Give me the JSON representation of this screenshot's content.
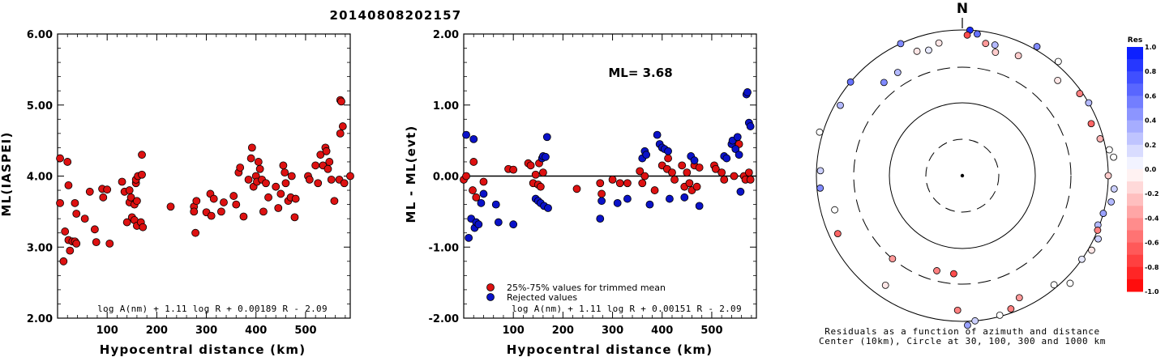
{
  "title": "20140808202157",
  "colors": {
    "accepted": "#dd1111",
    "rejected": "#0a12c8"
  },
  "chart_data": [
    {
      "id": "ml-vs-distance",
      "type": "scatter",
      "xlabel": "Hypocentral distance (km)",
      "ylabel": "ML(IASPEI)",
      "xlim": [
        0,
        590
      ],
      "ylim": [
        2.0,
        6.0
      ],
      "xticks": [
        "100",
        "200",
        "300",
        "400",
        "500"
      ],
      "yticks": [
        "2.00",
        "3.00",
        "4.00",
        "5.00",
        "6.00"
      ],
      "formula": "log A(nm) + 1.11 log R + 0.00189 R - 2.09",
      "points": [
        [
          5,
          4.25
        ],
        [
          5,
          3.62
        ],
        [
          12,
          2.8
        ],
        [
          15,
          3.22
        ],
        [
          20,
          4.2
        ],
        [
          22,
          3.87
        ],
        [
          22,
          3.1
        ],
        [
          25,
          2.95
        ],
        [
          30,
          3.08
        ],
        [
          35,
          3.62
        ],
        [
          35,
          3.08
        ],
        [
          38,
          3.05
        ],
        [
          38,
          3.47
        ],
        [
          55,
          3.4
        ],
        [
          65,
          3.78
        ],
        [
          75,
          3.25
        ],
        [
          78,
          3.07
        ],
        [
          90,
          3.82
        ],
        [
          92,
          3.7
        ],
        [
          100,
          3.81
        ],
        [
          105,
          3.05
        ],
        [
          130,
          3.92
        ],
        [
          135,
          3.78
        ],
        [
          140,
          3.35
        ],
        [
          145,
          3.8
        ],
        [
          145,
          3.63
        ],
        [
          148,
          3.7
        ],
        [
          150,
          3.42
        ],
        [
          155,
          3.6
        ],
        [
          155,
          3.38
        ],
        [
          158,
          3.9
        ],
        [
          158,
          3.95
        ],
        [
          160,
          3.3
        ],
        [
          160,
          3.65
        ],
        [
          162,
          4.0
        ],
        [
          168,
          3.35
        ],
        [
          170,
          4.3
        ],
        [
          170,
          4.02
        ],
        [
          172,
          3.28
        ],
        [
          228,
          3.57
        ],
        [
          275,
          3.57
        ],
        [
          275,
          3.5
        ],
        [
          278,
          3.2
        ],
        [
          280,
          3.65
        ],
        [
          300,
          3.49
        ],
        [
          308,
          3.75
        ],
        [
          310,
          3.44
        ],
        [
          315,
          3.68
        ],
        [
          330,
          3.5
        ],
        [
          335,
          3.63
        ],
        [
          355,
          3.72
        ],
        [
          360,
          3.6
        ],
        [
          365,
          4.05
        ],
        [
          368,
          4.12
        ],
        [
          375,
          3.43
        ],
        [
          385,
          3.95
        ],
        [
          390,
          4.25
        ],
        [
          392,
          4.4
        ],
        [
          395,
          3.85
        ],
        [
          400,
          4.0
        ],
        [
          402,
          3.92
        ],
        [
          405,
          4.2
        ],
        [
          408,
          4.1
        ],
        [
          412,
          3.95
        ],
        [
          415,
          3.5
        ],
        [
          420,
          3.9
        ],
        [
          425,
          3.7
        ],
        [
          440,
          3.85
        ],
        [
          445,
          3.55
        ],
        [
          450,
          3.75
        ],
        [
          455,
          4.15
        ],
        [
          458,
          4.05
        ],
        [
          460,
          3.9
        ],
        [
          465,
          3.65
        ],
        [
          470,
          3.7
        ],
        [
          472,
          4.0
        ],
        [
          478,
          3.42
        ],
        [
          480,
          3.68
        ],
        [
          505,
          4.0
        ],
        [
          508,
          3.95
        ],
        [
          520,
          4.15
        ],
        [
          525,
          3.9
        ],
        [
          530,
          4.3
        ],
        [
          535,
          4.15
        ],
        [
          540,
          4.4
        ],
        [
          542,
          4.35
        ],
        [
          545,
          4.1
        ],
        [
          548,
          4.2
        ],
        [
          552,
          3.95
        ],
        [
          558,
          3.65
        ],
        [
          568,
          3.95
        ],
        [
          570,
          4.6
        ],
        [
          570,
          5.07
        ],
        [
          572,
          5.05
        ],
        [
          575,
          4.7
        ],
        [
          578,
          3.9
        ],
        [
          590,
          4.0
        ]
      ]
    },
    {
      "id": "residual-vs-distance",
      "type": "scatter",
      "xlabel": "Hypocentral distance (km)",
      "ylabel": "ML - ML(evt)",
      "xlim": [
        0,
        590
      ],
      "ylim": [
        -2.0,
        2.0
      ],
      "xticks": [
        "100",
        "200",
        "300",
        "400",
        "500"
      ],
      "yticks": [
        "-2.00",
        "-1.00",
        "0.00",
        "1.00",
        "2.00"
      ],
      "annotation": "ML= 3.68",
      "legend": [
        "25%-75% values for trimmed mean",
        "Rejected values"
      ],
      "formula": "log A(nm) + 1.11 log R + 0.00151 R - 2.09",
      "series": [
        {
          "name": "25%-75% values for trimmed mean",
          "points": [
            [
              0,
              -0.05
            ],
            [
              5,
              0.0
            ],
            [
              18,
              -0.2
            ],
            [
              20,
              0.2
            ],
            [
              25,
              -0.3
            ],
            [
              40,
              -0.08
            ],
            [
              90,
              0.1
            ],
            [
              100,
              0.09
            ],
            [
              130,
              0.18
            ],
            [
              135,
              0.15
            ],
            [
              140,
              -0.1
            ],
            [
              145,
              0.02
            ],
            [
              150,
              -0.12
            ],
            [
              152,
              0.18
            ],
            [
              155,
              -0.15
            ],
            [
              160,
              0.05
            ],
            [
              228,
              -0.18
            ],
            [
              275,
              -0.1
            ],
            [
              278,
              -0.25
            ],
            [
              300,
              -0.05
            ],
            [
              315,
              -0.1
            ],
            [
              330,
              -0.1
            ],
            [
              355,
              0.07
            ],
            [
              360,
              -0.1
            ],
            [
              365,
              0.0
            ],
            [
              385,
              -0.2
            ],
            [
              400,
              0.15
            ],
            [
              410,
              0.1
            ],
            [
              412,
              0.25
            ],
            [
              420,
              0.05
            ],
            [
              425,
              -0.05
            ],
            [
              440,
              0.15
            ],
            [
              445,
              -0.15
            ],
            [
              450,
              0.05
            ],
            [
              455,
              -0.1
            ],
            [
              460,
              -0.2
            ],
            [
              465,
              0.15
            ],
            [
              470,
              -0.15
            ],
            [
              475,
              0.12
            ],
            [
              505,
              0.15
            ],
            [
              508,
              0.1
            ],
            [
              520,
              0.05
            ],
            [
              525,
              -0.05
            ],
            [
              545,
              0.0
            ],
            [
              555,
              0.45
            ],
            [
              565,
              0.0
            ],
            [
              568,
              -0.05
            ],
            [
              575,
              0.05
            ],
            [
              578,
              -0.05
            ]
          ]
        },
        {
          "name": "Rejected values",
          "points": [
            [
              5,
              0.58
            ],
            [
              10,
              -0.87
            ],
            [
              15,
              -0.6
            ],
            [
              20,
              0.52
            ],
            [
              22,
              -0.73
            ],
            [
              25,
              -0.65
            ],
            [
              30,
              -0.68
            ],
            [
              35,
              -0.38
            ],
            [
              40,
              -0.25
            ],
            [
              65,
              -0.4
            ],
            [
              70,
              -0.65
            ],
            [
              100,
              -0.68
            ],
            [
              145,
              -0.32
            ],
            [
              150,
              -0.35
            ],
            [
              155,
              -0.38
            ],
            [
              158,
              0.25
            ],
            [
              160,
              0.28
            ],
            [
              162,
              -0.42
            ],
            [
              165,
              0.27
            ],
            [
              168,
              0.55
            ],
            [
              170,
              -0.45
            ],
            [
              275,
              -0.6
            ],
            [
              278,
              -0.35
            ],
            [
              310,
              -0.38
            ],
            [
              330,
              -0.32
            ],
            [
              360,
              0.25
            ],
            [
              365,
              0.35
            ],
            [
              368,
              0.3
            ],
            [
              375,
              -0.4
            ],
            [
              390,
              0.58
            ],
            [
              395,
              0.45
            ],
            [
              400,
              0.4
            ],
            [
              405,
              0.38
            ],
            [
              412,
              0.35
            ],
            [
              415,
              -0.32
            ],
            [
              445,
              -0.3
            ],
            [
              458,
              0.28
            ],
            [
              465,
              0.22
            ],
            [
              475,
              -0.42
            ],
            [
              525,
              0.28
            ],
            [
              530,
              0.25
            ],
            [
              540,
              0.45
            ],
            [
              542,
              0.5
            ],
            [
              548,
              0.38
            ],
            [
              552,
              0.55
            ],
            [
              555,
              0.3
            ],
            [
              558,
              -0.22
            ],
            [
              570,
              1.15
            ],
            [
              572,
              1.18
            ],
            [
              575,
              0.75
            ],
            [
              578,
              0.7
            ]
          ]
        }
      ]
    },
    {
      "id": "azimuth-residuals",
      "type": "polar-scatter",
      "north_label": "N",
      "caption": [
        "Residuals as a function of azimuth and distance",
        "Center (10km), Circle at 30, 100, 300 and 1000 km"
      ],
      "colorbar": {
        "title": "Res",
        "ticks": [
          "1.0",
          "0.8",
          "0.6",
          "0.4",
          "0.2",
          "0.0",
          "-0.2",
          "-0.4",
          "-0.6",
          "-0.8",
          "-1.0"
        ]
      },
      "points_az_dist_res": [
        [
          3,
          1000,
          0.9
        ],
        [
          2,
          850,
          -0.7
        ],
        [
          6,
          900,
          0.6
        ],
        [
          14,
          700,
          0.3
        ],
        [
          10,
          690,
          -0.4
        ],
        [
          15,
          560,
          -0.2
        ],
        [
          25,
          650,
          -0.2
        ],
        [
          30,
          1050,
          0.5
        ],
        [
          45,
          700,
          -0.1
        ],
        [
          55,
          920,
          -0.5
        ],
        [
          60,
          1000,
          0.3
        ],
        [
          68,
          800,
          -0.6
        ],
        [
          75,
          900,
          -0.3
        ],
        [
          80,
          1050,
          0.0
        ],
        [
          83,
          1100,
          0.0
        ],
        [
          90,
          1000,
          -0.2
        ],
        [
          95,
          1100,
          0.2
        ],
        [
          100,
          1080,
          0.3
        ],
        [
          105,
          1000,
          0.4
        ],
        [
          110,
          950,
          0.3
        ],
        [
          112,
          1000,
          -0.5
        ],
        [
          115,
          1060,
          0.2
        ],
        [
          120,
          1050,
          -0.1
        ],
        [
          125,
          1000,
          0.1
        ],
        [
          135,
          1100,
          0.0
        ],
        [
          140,
          900,
          0.0
        ],
        [
          155,
          700,
          -0.4
        ],
        [
          160,
          880,
          -0.5
        ],
        [
          165,
          960,
          0.0
        ],
        [
          175,
          1000,
          0.2
        ],
        [
          178,
          1060,
          0.4
        ],
        [
          182,
          700,
          -0.5
        ],
        [
          185,
          220,
          -0.7
        ],
        [
          195,
          220,
          -0.5
        ],
        [
          215,
          680,
          -0.1
        ],
        [
          220,
          300,
          -0.4
        ],
        [
          245,
          760,
          -0.6
        ],
        [
          255,
          640,
          0.0
        ],
        [
          265,
          900,
          0.5
        ],
        [
          272,
          880,
          0.2
        ],
        [
          287,
          1050,
          0.0
        ],
        [
          300,
          850,
          0.3
        ],
        [
          310,
          1000,
          0.6
        ],
        [
          320,
          460,
          0.5
        ],
        [
          328,
          460,
          0.3
        ],
        [
          335,
          1000,
          0.5
        ],
        [
          340,
          650,
          -0.1
        ],
        [
          345,
          600,
          0.1
        ],
        [
          350,
          700,
          -0.1
        ],
        [
          40,
          1050,
          0.0
        ]
      ]
    }
  ]
}
